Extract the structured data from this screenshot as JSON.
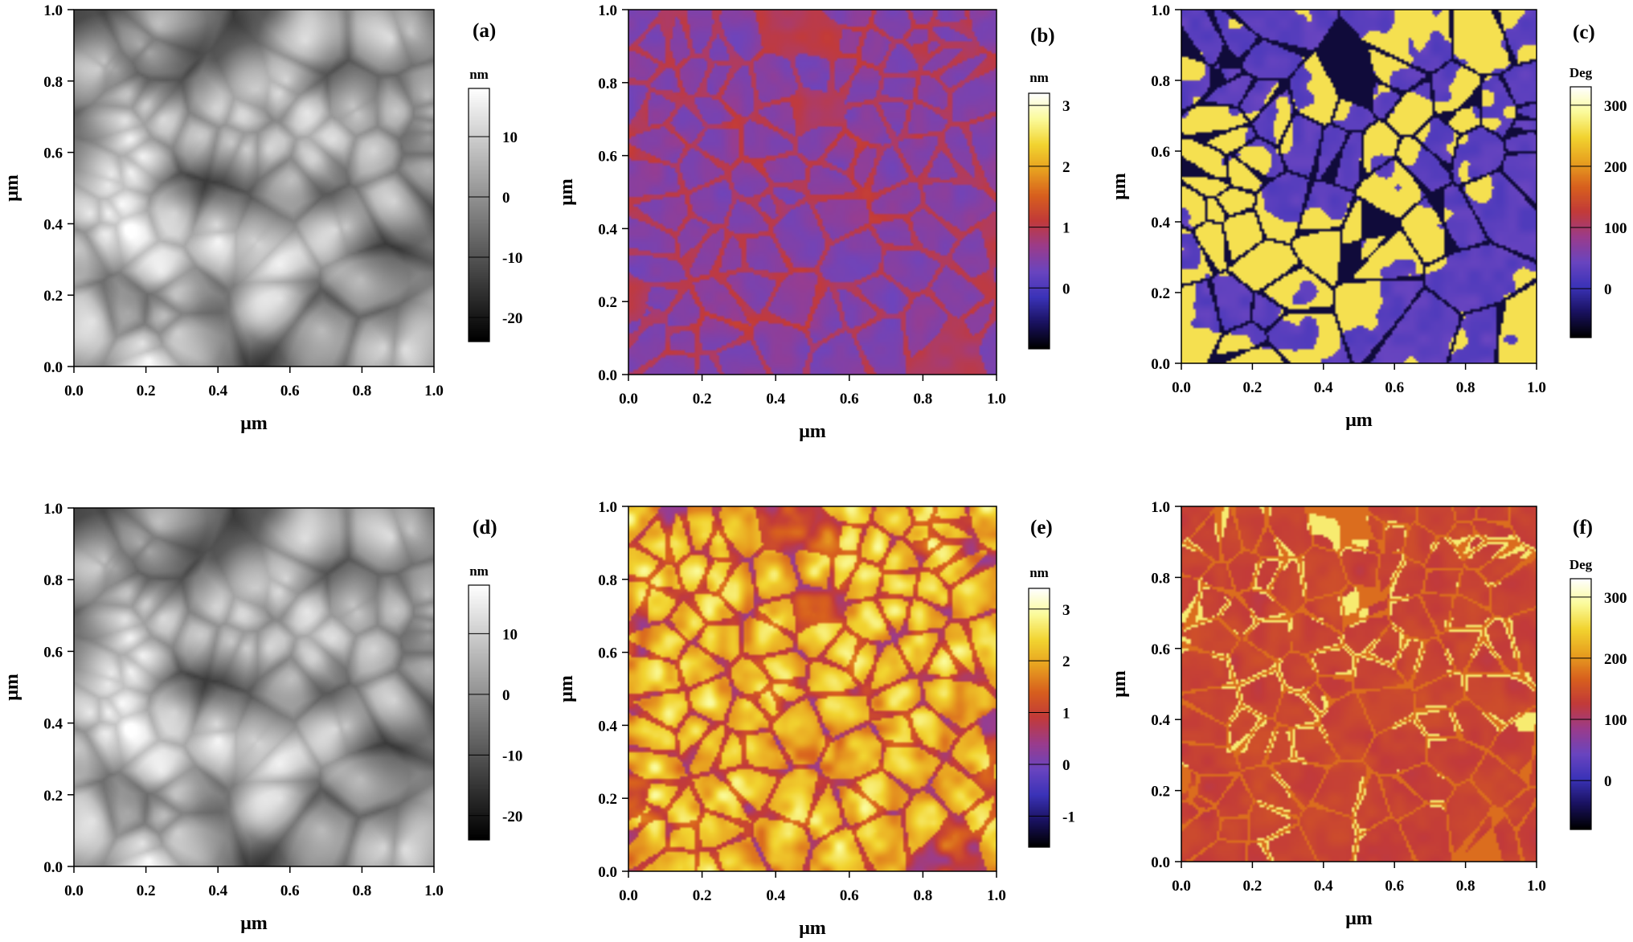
{
  "figure": {
    "axis_unit_label": "μm",
    "tick_labels": [
      "0.0",
      "0.2",
      "0.4",
      "0.6",
      "0.8",
      "1.0"
    ],
    "panels": [
      {
        "id": "a",
        "label": "(a)",
        "unit": "nm",
        "colormap": "gray",
        "ticks": [
          {
            "v": 10,
            "t": "10"
          },
          {
            "v": 0,
            "t": "0"
          },
          {
            "v": -10,
            "t": "-10"
          },
          {
            "v": -20,
            "t": "-20"
          }
        ],
        "range": [
          -24,
          18
        ],
        "pattern": "topo"
      },
      {
        "id": "b",
        "label": "(b)",
        "unit": "nm",
        "colormap": "fire",
        "ticks": [
          {
            "v": 3,
            "t": "3"
          },
          {
            "v": 2,
            "t": "2"
          },
          {
            "v": 1,
            "t": "1"
          },
          {
            "v": 0,
            "t": "0"
          }
        ],
        "range": [
          -1,
          3.2
        ],
        "pattern": "amp_low"
      },
      {
        "id": "c",
        "label": "(c)",
        "unit": "Deg",
        "colormap": "fire",
        "ticks": [
          {
            "v": 300,
            "t": "300"
          },
          {
            "v": 200,
            "t": "200"
          },
          {
            "v": 100,
            "t": "100"
          },
          {
            "v": 0,
            "t": "0"
          }
        ],
        "range": [
          -80,
          330
        ],
        "pattern": "phase_high"
      },
      {
        "id": "d",
        "label": "(d)",
        "unit": "nm",
        "colormap": "gray",
        "ticks": [
          {
            "v": 10,
            "t": "10"
          },
          {
            "v": 0,
            "t": "0"
          },
          {
            "v": -10,
            "t": "-10"
          },
          {
            "v": -20,
            "t": "-20"
          }
        ],
        "range": [
          -24,
          18
        ],
        "pattern": "topo"
      },
      {
        "id": "e",
        "label": "(e)",
        "unit": "nm",
        "colormap": "fire",
        "ticks": [
          {
            "v": 3,
            "t": "3"
          },
          {
            "v": 2,
            "t": "2"
          },
          {
            "v": 1,
            "t": "1"
          },
          {
            "v": 0,
            "t": "0"
          },
          {
            "v": -1,
            "t": "-1"
          }
        ],
        "range": [
          -1.6,
          3.4
        ],
        "pattern": "amp_high"
      },
      {
        "id": "f",
        "label": "(f)",
        "unit": "Deg",
        "colormap": "fire",
        "ticks": [
          {
            "v": 300,
            "t": "300"
          },
          {
            "v": 200,
            "t": "200"
          },
          {
            "v": 100,
            "t": "100"
          },
          {
            "v": 0,
            "t": "0"
          }
        ],
        "range": [
          -80,
          330
        ],
        "pattern": "phase_low"
      }
    ],
    "colors": {
      "gray": [
        "#000000",
        "#ffffff"
      ],
      "fire": [
        "#000000",
        "#1a1260",
        "#3b33b8",
        "#6a45c0",
        "#9b3c8c",
        "#c23a3a",
        "#d8601e",
        "#e8a020",
        "#f2d430",
        "#fbfb9a",
        "#ffffff"
      ]
    }
  }
}
